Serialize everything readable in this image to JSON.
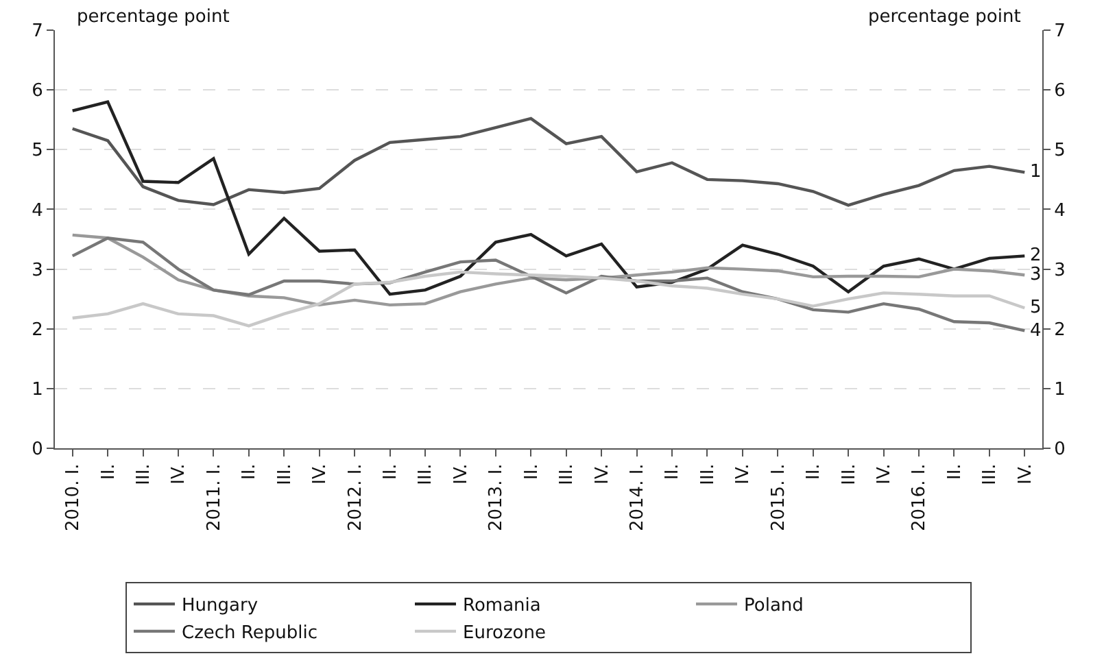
{
  "chart_data": {
    "type": "line",
    "ylabel": "percentage point",
    "y2label": "percentage point",
    "categories": [
      "2010. I.",
      "II.",
      "III.",
      "IV.",
      "2011. I.",
      "II.",
      "III.",
      "IV.",
      "2012. I.",
      "II.",
      "III.",
      "IV.",
      "2013. I.",
      "II.",
      "III.",
      "IV.",
      "2014. I.",
      "II.",
      "III.",
      "IV.",
      "2015. I.",
      "II.",
      "III.",
      "IV.",
      "2016. I.",
      "II.",
      "III.",
      "IV."
    ],
    "series": [
      {
        "name": "Hungary",
        "color": "#555555",
        "values": [
          5.35,
          5.15,
          4.38,
          4.15,
          4.08,
          4.33,
          4.28,
          4.35,
          4.82,
          5.12,
          5.17,
          5.22,
          5.37,
          5.52,
          5.1,
          5.22,
          4.63,
          4.78,
          4.5,
          4.48,
          4.43,
          4.3,
          4.07,
          4.25,
          4.4,
          4.65,
          4.72,
          4.62
        ]
      },
      {
        "name": "Romania",
        "color": "#222222",
        "values": [
          5.65,
          5.8,
          4.47,
          4.45,
          4.85,
          3.25,
          3.85,
          3.3,
          3.32,
          2.58,
          2.65,
          2.88,
          3.45,
          3.58,
          3.22,
          3.42,
          2.7,
          2.78,
          3.0,
          3.4,
          3.25,
          3.05,
          2.62,
          3.05,
          3.17,
          3.0,
          3.18,
          3.22
        ]
      },
      {
        "name": "Poland",
        "color": "#999999",
        "values": [
          3.57,
          3.52,
          3.2,
          2.82,
          2.65,
          2.55,
          2.52,
          2.4,
          2.48,
          2.4,
          2.42,
          2.62,
          2.75,
          2.85,
          2.82,
          2.85,
          2.9,
          2.95,
          3.02,
          3.0,
          2.97,
          2.87,
          2.88,
          2.88,
          2.87,
          3.0,
          2.97,
          2.9
        ]
      },
      {
        "name": "Czech Republic",
        "color": "#777777",
        "values": [
          3.22,
          3.52,
          3.45,
          3.0,
          2.65,
          2.57,
          2.8,
          2.8,
          2.75,
          2.77,
          2.95,
          3.12,
          3.15,
          2.88,
          2.6,
          2.88,
          2.8,
          2.8,
          2.85,
          2.62,
          2.5,
          2.32,
          2.28,
          2.42,
          2.33,
          2.12,
          2.1,
          1.97
        ]
      },
      {
        "name": "Eurozone",
        "color": "#c8c8c8",
        "values": [
          2.18,
          2.25,
          2.42,
          2.25,
          2.22,
          2.05,
          2.25,
          2.42,
          2.75,
          2.78,
          2.88,
          2.95,
          2.92,
          2.9,
          2.88,
          2.85,
          2.8,
          2.72,
          2.68,
          2.58,
          2.5,
          2.38,
          2.5,
          2.6,
          2.58,
          2.55,
          2.55,
          2.35
        ]
      }
    ],
    "annotations": [
      "1",
      "2",
      "3",
      "4",
      "5"
    ],
    "ylim": [
      0,
      7
    ],
    "yticks": [
      0,
      1,
      2,
      3,
      4,
      5,
      6,
      7
    ],
    "y2lim": [
      0,
      7
    ],
    "y2ticks": [
      0,
      1,
      2,
      3,
      4,
      5,
      6,
      7
    ],
    "grid": "y",
    "legend": "bottom",
    "marker": "none",
    "line_style": "solid"
  }
}
